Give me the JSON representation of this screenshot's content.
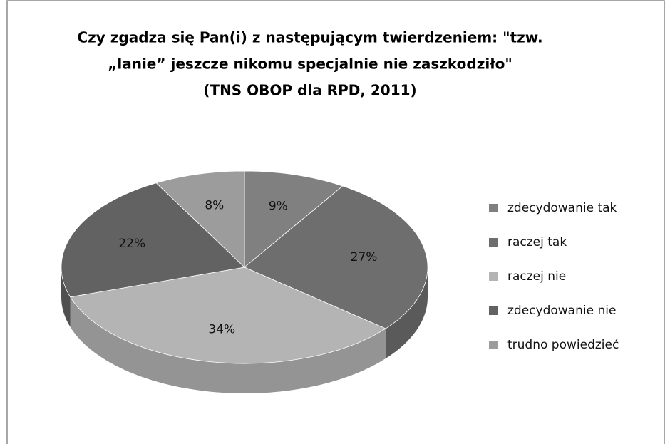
{
  "chart_data": {
    "type": "pie",
    "title": [
      "Czy zgadza się Pan(i) z następującym twierdzeniem: \"tzw.",
      "„lanie” jeszcze nikomu specjalnie nie zaszkodziło\"",
      "(TNS OBOP dla RPD,  2011)"
    ],
    "categories": [
      "zdecydowanie tak",
      "raczej tak",
      "raczej nie",
      "zdecydowanie nie",
      "trudno powiedzieć"
    ],
    "values": [
      9,
      27,
      34,
      22,
      8
    ],
    "value_labels": [
      "9%",
      "27%",
      "34%",
      "22%",
      "8%"
    ],
    "colors": [
      "#808080",
      "#6e6e6e",
      "#b4b4b4",
      "#626262",
      "#9c9c9c"
    ],
    "legend": "right"
  }
}
